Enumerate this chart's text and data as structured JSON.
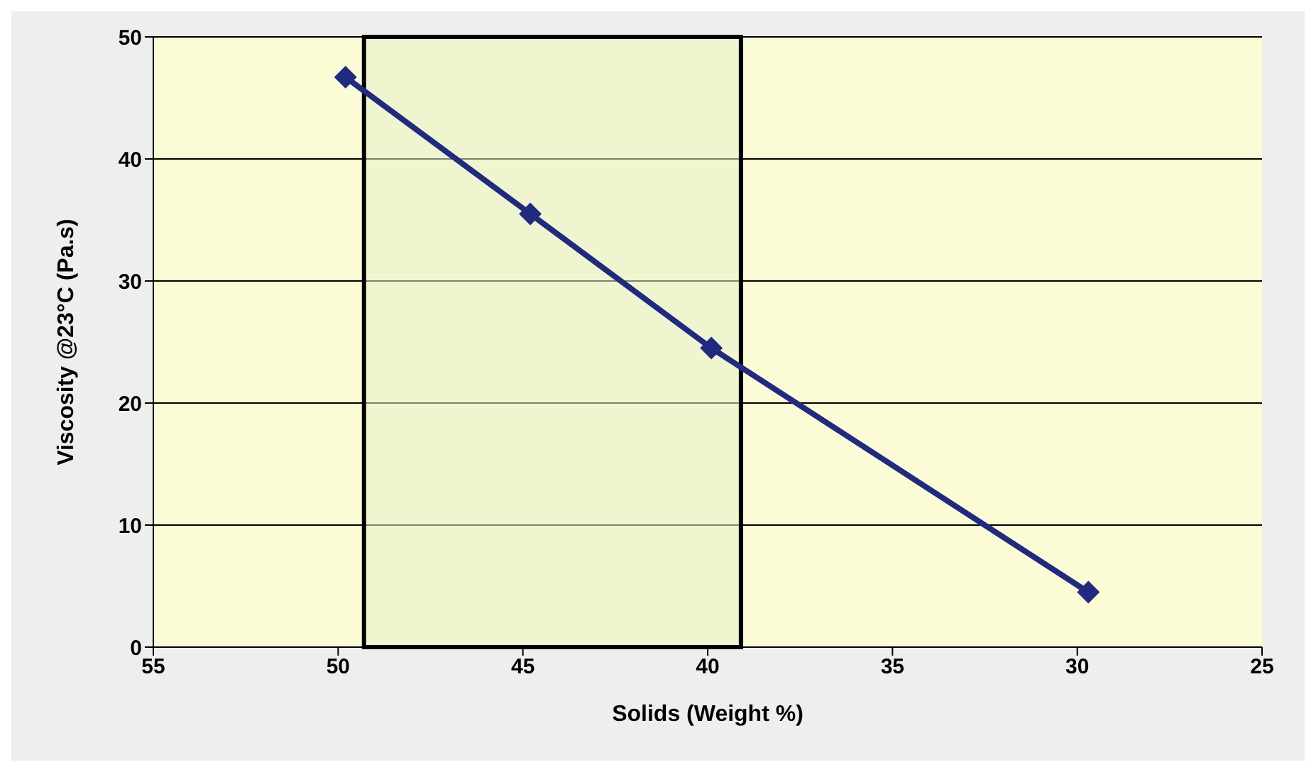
{
  "chart_data": {
    "type": "line",
    "xlabel": "Solids (Weight %)",
    "ylabel": "Viscosity @23°C (Pa.s)",
    "x": [
      49.8,
      44.8,
      39.9,
      29.7
    ],
    "series": [
      {
        "color": "#1f2a80",
        "values": [
          46.7,
          35.5,
          24.5,
          4.5
        ]
      }
    ],
    "xlim": [
      55,
      25
    ],
    "xticks": [
      55,
      50,
      45,
      40,
      35,
      30,
      25
    ],
    "ylim": [
      0,
      50
    ],
    "yticks": [
      0,
      10,
      20,
      30,
      40,
      50
    ],
    "grid": "y",
    "marker": "diamond",
    "line_style": "solid",
    "bands": [
      {
        "axis": "x",
        "from": 49.3,
        "to": 39.1,
        "color": "#e6f0c8"
      }
    ]
  }
}
